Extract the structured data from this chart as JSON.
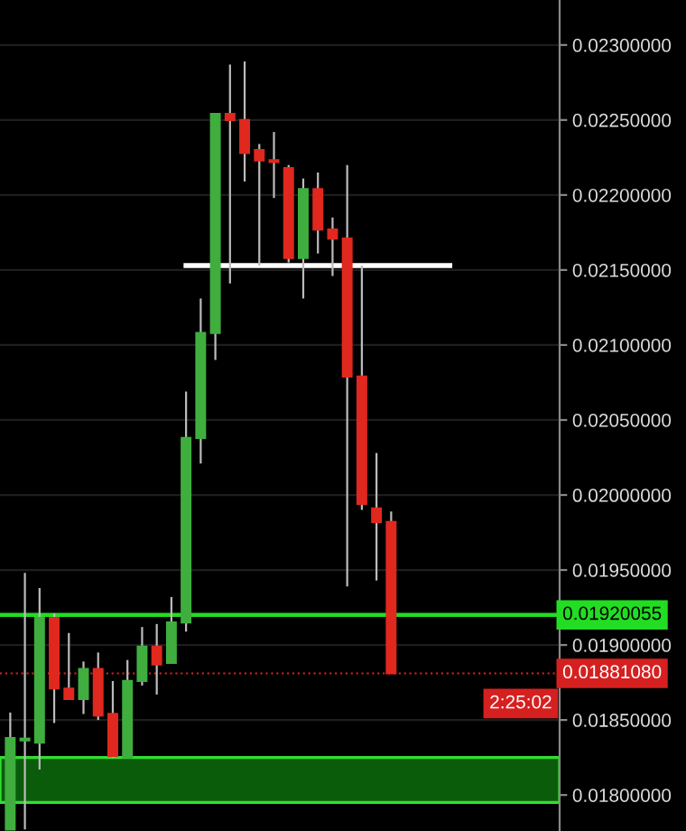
{
  "chart_data": {
    "type": "candlestick",
    "categories": [
      null,
      null,
      null,
      null,
      null,
      null,
      null,
      null,
      null,
      null,
      null,
      null,
      null,
      null,
      null,
      null,
      null,
      null,
      null,
      null,
      null,
      null,
      null,
      null,
      null,
      null,
      null,
      null,
      null,
      null,
      null,
      null,
      null,
      null,
      null,
      null,
      null,
      null
    ],
    "ohlc": [
      [
        0.01777,
        0.01855,
        0.01777,
        0.01838
      ],
      [
        0.01837,
        0.01948,
        0.01777,
        0.01837
      ],
      [
        0.01835,
        0.01938,
        0.01817,
        0.01918
      ],
      [
        0.01918,
        0.01921,
        0.01848,
        0.01871
      ],
      [
        0.01871,
        0.01908,
        0.01864,
        0.01864
      ],
      [
        0.01864,
        0.01889,
        0.01854,
        0.01884
      ],
      [
        0.01884,
        0.01895,
        0.0185,
        0.01853
      ],
      [
        0.01854,
        0.01876,
        0.01825,
        0.01826
      ],
      [
        0.01825,
        0.0189,
        0.01825,
        0.01876
      ],
      [
        0.01876,
        0.01912,
        0.01873,
        0.01899
      ],
      [
        0.01899,
        0.01914,
        0.01867,
        0.01887
      ],
      [
        0.01888,
        0.01932,
        0.01888,
        0.01915
      ],
      [
        0.01915,
        0.02069,
        0.01909,
        0.02038
      ],
      [
        0.02038,
        0.02131,
        0.02021,
        0.02108
      ],
      [
        0.02108,
        0.02254,
        0.0209,
        0.02254
      ],
      [
        0.02254,
        0.02287,
        0.02141,
        0.0225
      ],
      [
        0.0225,
        0.02289,
        0.02209,
        0.02228
      ],
      [
        0.0223,
        0.02234,
        0.02153,
        0.02223
      ],
      [
        0.02223,
        0.02242,
        0.02198,
        0.02222
      ],
      [
        0.02218,
        0.0222,
        0.02155,
        0.02158
      ],
      [
        0.02158,
        0.02211,
        0.02131,
        0.02204
      ],
      [
        0.02204,
        0.02215,
        0.02161,
        0.02177
      ],
      [
        0.02177,
        0.02185,
        0.02146,
        0.02171
      ],
      [
        0.02171,
        0.0222,
        0.01939,
        0.02079
      ],
      [
        0.02079,
        0.02153,
        0.0199,
        0.01994
      ],
      [
        0.01991,
        0.02028,
        0.01943,
        0.01982
      ],
      [
        0.01982,
        0.01989,
        0.01881,
        0.0188108
      ],
      null,
      null,
      null,
      null,
      null,
      null,
      null,
      null,
      null,
      null,
      null
    ],
    "series": [
      {
        "type": "line",
        "color": "#ffffff",
        "values": [
          null,
          null,
          null,
          null,
          null,
          null,
          null,
          null,
          null,
          null,
          null,
          null,
          0.02153,
          0.02153,
          0.02153,
          0.02153,
          0.02153,
          0.02153,
          0.02153,
          0.02153,
          0.02153,
          0.02153,
          0.02153,
          0.02153,
          0.02153,
          0.02153,
          0.02153,
          0.02153,
          0.02153,
          0.02153,
          0.02153,
          null,
          null,
          null,
          null,
          null,
          null,
          null
        ]
      }
    ],
    "ref_lines": [
      {
        "axis": "y",
        "value": 0.01920055,
        "label": "0.01920055",
        "color": "#22dd22",
        "line_style": "solid"
      },
      {
        "axis": "y",
        "value": 0.0188108,
        "label": "0.01881080",
        "color": "#d62020",
        "line_style": "dotted"
      }
    ],
    "bands": [
      {
        "axis": "y",
        "from": 0.01795,
        "to": 0.01825,
        "color": "#0a5c0a"
      }
    ],
    "annotations": [
      "2:25:02"
    ],
    "ylim": [
      0.01776,
      0.0233
    ],
    "yticks": [
      {
        "value": 0.018,
        "label": "0.01800000"
      },
      {
        "value": 0.0185,
        "label": "0.01850000"
      },
      {
        "value": 0.019,
        "label": "0.01900000"
      },
      {
        "value": 0.0195,
        "label": "0.01950000"
      },
      {
        "value": 0.02,
        "label": "0.02000000"
      },
      {
        "value": 0.0205,
        "label": "0.02050000"
      },
      {
        "value": 0.021,
        "label": "0.02100000"
      },
      {
        "value": 0.0215,
        "label": "0.02150000"
      },
      {
        "value": 0.022,
        "label": "0.02200000"
      },
      {
        "value": 0.0225,
        "label": "0.02250000"
      },
      {
        "value": 0.023,
        "label": "0.02300000"
      }
    ],
    "grid": "y",
    "tick_labels": "y"
  }
}
